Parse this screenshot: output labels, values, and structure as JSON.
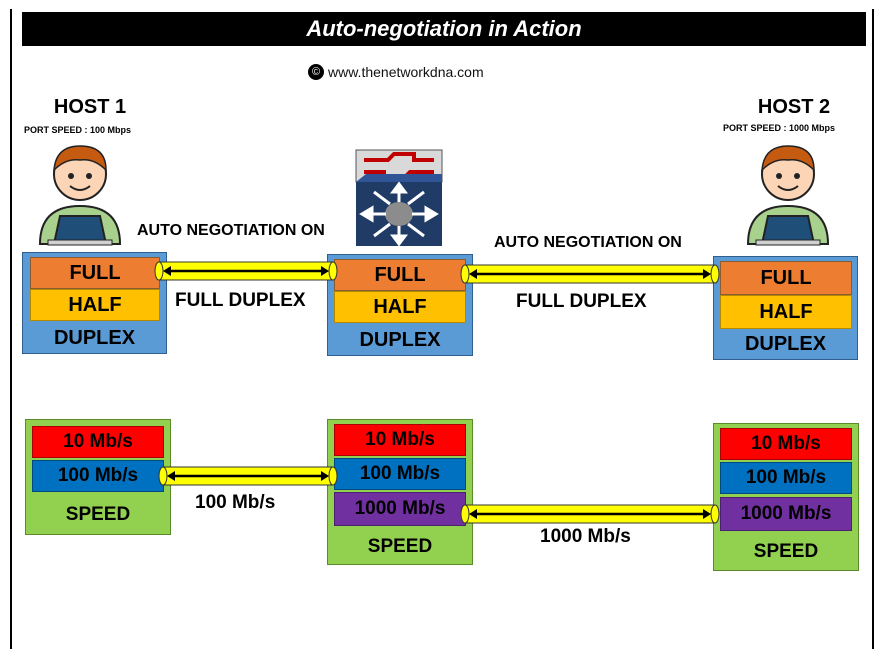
{
  "title": "Auto-negotiation in Action",
  "copyright": {
    "symbol": "©",
    "text": "www.thenetworkdna.com"
  },
  "host1": {
    "name": "HOST 1",
    "port_speed": "PORT SPEED : 100 Mbps"
  },
  "host2": {
    "name": "HOST 2",
    "port_speed": "PORT SPEED : 1000 Mbps"
  },
  "duplex": {
    "full": "FULL",
    "half": "HALF",
    "label": "DUPLEX",
    "link1_top": "AUTO NEGOTIATION ON",
    "link1_bottom": "FULL DUPLEX",
    "link2_top": "AUTO NEGOTIATION ON",
    "link2_bottom": "FULL DUPLEX"
  },
  "speed": {
    "s10": "10 Mb/s",
    "s100": "100 Mb/s",
    "s1000": "1000 Mb/s",
    "label": "SPEED",
    "link1": "100 Mb/s",
    "link2": "1000 Mb/s"
  },
  "colors": {
    "duplex_panel": "#5b9bd5",
    "speed_panel": "#92d050",
    "full": "#ed7d31",
    "half": "#ffc000",
    "s10": "#ff0000",
    "s100": "#0070c0",
    "s1000": "#7030a0",
    "cable": "#ffff00"
  },
  "icons": [
    "user-laptop-icon",
    "switch-icon"
  ]
}
